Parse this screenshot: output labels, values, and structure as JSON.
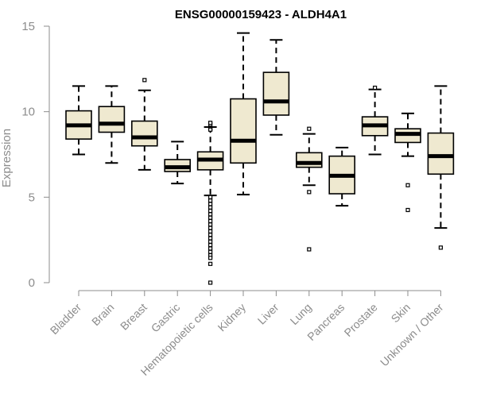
{
  "chart_data": {
    "type": "box",
    "title": "ENSG00000159423 - ALDH4A1",
    "xlabel": "",
    "ylabel": "Expression",
    "ylim": [
      0,
      15
    ],
    "yticks": [
      0,
      5,
      10,
      15
    ],
    "grid": false,
    "colors": {
      "box_fill": "#efe9d0",
      "stroke": "#000000",
      "axis": "#8c8c8c",
      "label": "#8c8c8c"
    },
    "categories": [
      "Bladder",
      "Brain",
      "Breast",
      "Gastric",
      "Hematopoietic cells",
      "Kidney",
      "Liver",
      "Lung",
      "Pancreas",
      "Prostate",
      "Skin",
      "Unknown / Other"
    ],
    "boxes": [
      {
        "category": "Bladder",
        "whisker_low": 7.5,
        "q1": 8.4,
        "median": 9.2,
        "q3": 10.05,
        "whisker_high": 11.5,
        "outliers": []
      },
      {
        "category": "Brain",
        "whisker_low": 7.0,
        "q1": 8.8,
        "median": 9.3,
        "q3": 10.3,
        "whisker_high": 11.5,
        "outliers": []
      },
      {
        "category": "Breast",
        "whisker_low": 6.6,
        "q1": 8.0,
        "median": 8.5,
        "q3": 9.45,
        "whisker_high": 11.25,
        "outliers": [
          11.85
        ]
      },
      {
        "category": "Gastric",
        "whisker_low": 5.8,
        "q1": 6.5,
        "median": 6.75,
        "q3": 7.2,
        "whisker_high": 8.25,
        "outliers": []
      },
      {
        "category": "Hematopoietic cells",
        "whisker_low": 5.1,
        "q1": 6.6,
        "median": 7.2,
        "q3": 7.65,
        "whisker_high": 9.1,
        "outliers": [
          9.25,
          9.35,
          9.0,
          8.95,
          5.0,
          4.8,
          4.6,
          4.4,
          4.2,
          4.0,
          3.8,
          3.6,
          3.4,
          3.2,
          3.0,
          2.8,
          2.6,
          2.4,
          2.2,
          2.0,
          1.8,
          1.6,
          1.45,
          1.1,
          0.0
        ]
      },
      {
        "category": "Kidney",
        "whisker_low": 5.15,
        "q1": 7.0,
        "median": 8.3,
        "q3": 10.75,
        "whisker_high": 14.6,
        "outliers": []
      },
      {
        "category": "Liver",
        "whisker_low": 8.65,
        "q1": 9.8,
        "median": 10.6,
        "q3": 12.3,
        "whisker_high": 14.2,
        "outliers": []
      },
      {
        "category": "Lung",
        "whisker_low": 5.7,
        "q1": 6.75,
        "median": 7.0,
        "q3": 7.6,
        "whisker_high": 8.7,
        "outliers": [
          9.0,
          5.3,
          1.95
        ]
      },
      {
        "category": "Pancreas",
        "whisker_low": 4.5,
        "q1": 5.2,
        "median": 6.25,
        "q3": 7.4,
        "whisker_high": 7.9,
        "outliers": []
      },
      {
        "category": "Prostate",
        "whisker_low": 7.5,
        "q1": 8.6,
        "median": 9.2,
        "q3": 9.7,
        "whisker_high": 11.3,
        "outliers": [
          11.4
        ]
      },
      {
        "category": "Skin",
        "whisker_low": 7.4,
        "q1": 8.2,
        "median": 8.7,
        "q3": 9.0,
        "whisker_high": 9.9,
        "outliers": [
          5.7,
          4.25
        ]
      },
      {
        "category": "Unknown / Other",
        "whisker_low": 3.2,
        "q1": 6.35,
        "median": 7.4,
        "q3": 8.75,
        "whisker_high": 11.5,
        "outliers": [
          2.05
        ]
      }
    ]
  }
}
